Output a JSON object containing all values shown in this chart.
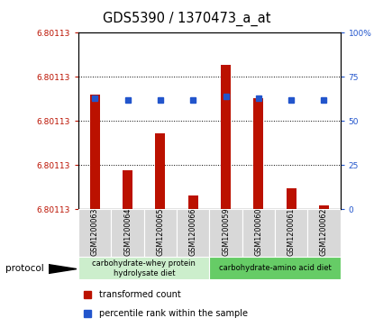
{
  "title": "GDS5390 / 1370473_a_at",
  "samples": [
    "GSM1200063",
    "GSM1200064",
    "GSM1200065",
    "GSM1200066",
    "GSM1200059",
    "GSM1200060",
    "GSM1200061",
    "GSM1200062"
  ],
  "red_bars": [
    65,
    22,
    43,
    8,
    82,
    63,
    12,
    2
  ],
  "blue_squares": [
    63,
    62,
    62,
    62,
    64,
    63,
    62,
    62
  ],
  "y_left_labels": [
    "6.80113",
    "6.80113",
    "6.80113",
    "6.80113",
    "6.80113"
  ],
  "y_left_ticks": [
    0,
    25,
    50,
    75,
    100
  ],
  "y_right_ticks": [
    0,
    25,
    50,
    75,
    100
  ],
  "y_right_labels": [
    "0",
    "25",
    "50",
    "75",
    "100%"
  ],
  "bar_color": "#bb1100",
  "square_color": "#2255cc",
  "group1_label": "carbohydrate-whey protein\nhydrolysate diet",
  "group2_label": "carbohydrate-amino acid diet",
  "group1_color": "#cceecc",
  "group2_color": "#66cc66",
  "protocol_label": "protocol",
  "legend_red": "transformed count",
  "legend_blue": "percentile rank within the sample",
  "sample_bg_color": "#d8d8d8",
  "plot_bg_color": "#ffffff",
  "fig_bg_color": "#ffffff"
}
